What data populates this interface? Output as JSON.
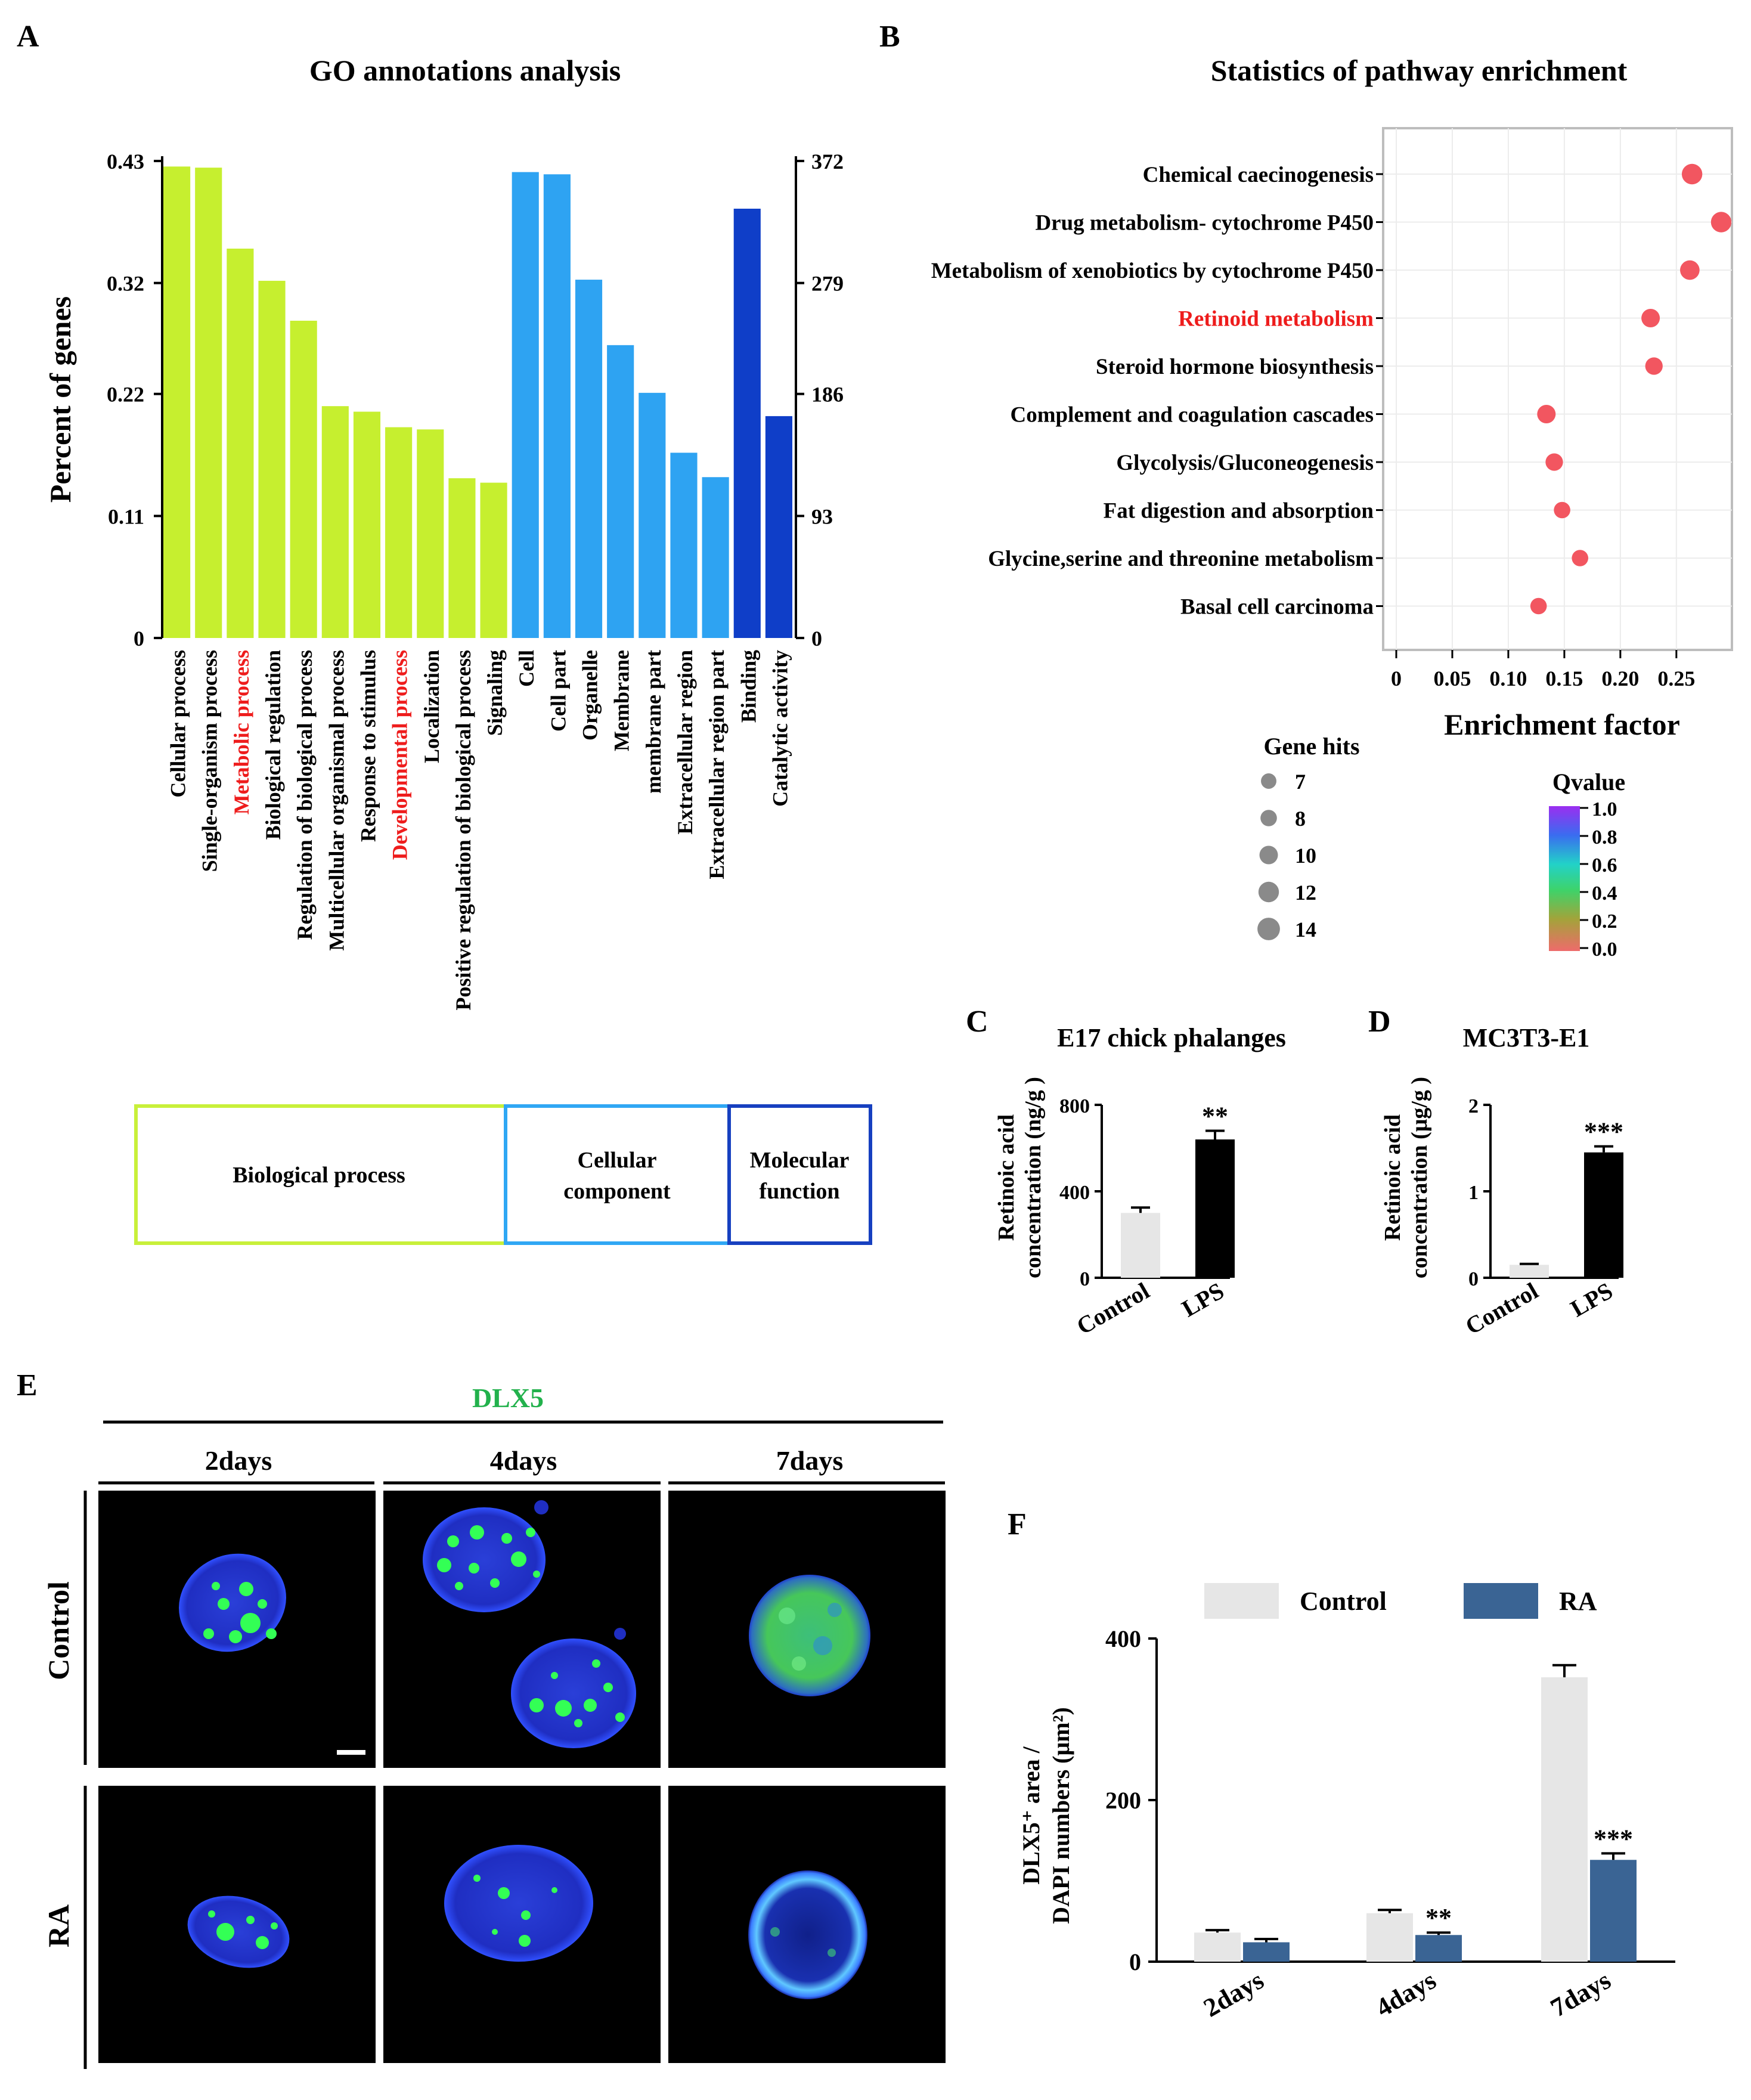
{
  "panels": {
    "a": {
      "letter": "A"
    },
    "b": {
      "letter": "B"
    },
    "c": {
      "letter": "C"
    },
    "d": {
      "letter": "D"
    },
    "e": {
      "letter": "E"
    },
    "f": {
      "letter": "F"
    }
  },
  "colors": {
    "bio": "#c6ef2f",
    "bio_box": "#c8f03a",
    "cell_light": "#2ea3f2",
    "cell_box": "#2fa7f4",
    "mol": "#0f3ec8",
    "mol_box": "#1740c0",
    "red": "#ee1c1c",
    "dot": "#f25660",
    "control_bar": "#e6e6e6",
    "lps_bar": "#000000",
    "ra_bar": "#3a6494",
    "green_title": "#22b14c"
  },
  "chart_data": [
    {
      "id": "go",
      "type": "bar",
      "title": "GO annotations analysis",
      "ylabel": "Percent of genes",
      "ylim": [
        0,
        0.43
      ],
      "yticks": [
        "0",
        "0.11",
        "0.22",
        "0.32",
        "0.43"
      ],
      "y2ticks": [
        "0",
        "93",
        "186",
        "279",
        "372"
      ],
      "categories": [
        {
          "label": "Cellular process",
          "value": 0.425,
          "group": "bio",
          "highlight": false
        },
        {
          "label": "Single-organism process",
          "value": 0.424,
          "group": "bio",
          "highlight": false
        },
        {
          "label": "Metabolic process",
          "value": 0.351,
          "group": "bio",
          "highlight": true
        },
        {
          "label": "Biological regulation",
          "value": 0.322,
          "group": "bio",
          "highlight": false
        },
        {
          "label": "Regulation of biological process",
          "value": 0.286,
          "group": "bio",
          "highlight": false
        },
        {
          "label": "Multicellular organismal process",
          "value": 0.209,
          "group": "bio",
          "highlight": false
        },
        {
          "label": "Response to stimulus",
          "value": 0.204,
          "group": "bio",
          "highlight": false
        },
        {
          "label": "Developmental process",
          "value": 0.19,
          "group": "bio",
          "highlight": true
        },
        {
          "label": "Localization",
          "value": 0.188,
          "group": "bio",
          "highlight": false
        },
        {
          "label": "Positive regulation of biological process",
          "value": 0.144,
          "group": "bio",
          "highlight": false
        },
        {
          "label": "Signaling",
          "value": 0.14,
          "group": "bio",
          "highlight": false
        },
        {
          "label": "Cell",
          "value": 0.42,
          "group": "cell",
          "highlight": false
        },
        {
          "label": "Cell part",
          "value": 0.418,
          "group": "cell",
          "highlight": false
        },
        {
          "label": "Organelle",
          "value": 0.323,
          "group": "cell",
          "highlight": false
        },
        {
          "label": "Membrane",
          "value": 0.264,
          "group": "cell",
          "highlight": false
        },
        {
          "label": "membrane part",
          "value": 0.221,
          "group": "cell",
          "highlight": false
        },
        {
          "label": "Extracellular region",
          "value": 0.167,
          "group": "cell",
          "highlight": false
        },
        {
          "label": "Extracellular region part",
          "value": 0.145,
          "group": "cell",
          "highlight": false
        },
        {
          "label": "Binding",
          "value": 0.387,
          "group": "mol",
          "highlight": false
        },
        {
          "label": "Catalytic activity",
          "value": 0.2,
          "group": "mol",
          "highlight": false
        }
      ],
      "groups": [
        {
          "key": "bio",
          "label": "Biological process"
        },
        {
          "key": "cell",
          "label": "Cellular component"
        },
        {
          "key": "mol",
          "label": "Molecular function"
        }
      ]
    },
    {
      "id": "kegg",
      "type": "scatter",
      "title": "Statistics of pathway enrichment",
      "xlabel": "Enrichment factor",
      "xlim": [
        0,
        0.29
      ],
      "xticks": [
        "0",
        "0.05",
        "0.10",
        "0.15",
        "0.20",
        "0.25"
      ],
      "points": [
        {
          "label": "Chemical caecinogenesis",
          "x": 0.264,
          "hits": 12,
          "highlight": false
        },
        {
          "label": "Drug metabolism- cytochrome P450",
          "x": 0.29,
          "hits": 12,
          "highlight": false
        },
        {
          "label": "Metabolism of xenobiotics by cytochrome P450",
          "x": 0.262,
          "hits": 11,
          "highlight": false
        },
        {
          "label": "Retinoid metabolism",
          "x": 0.227,
          "hits": 10,
          "highlight": true
        },
        {
          "label": "Steroid hormone biosynthesis",
          "x": 0.23,
          "hits": 9,
          "highlight": false
        },
        {
          "label": "Complement and coagulation cascades",
          "x": 0.134,
          "hits": 10,
          "highlight": false
        },
        {
          "label": "Glycolysis/Gluconeogenesis",
          "x": 0.141,
          "hits": 9,
          "highlight": false
        },
        {
          "label": "Fat digestion and absorption",
          "x": 0.148,
          "hits": 8,
          "highlight": false
        },
        {
          "label": "Glycine,serine and threonine metabolism",
          "x": 0.164,
          "hits": 8,
          "highlight": false
        },
        {
          "label": "Basal cell carcinoma",
          "x": 0.127,
          "hits": 8,
          "highlight": false
        }
      ],
      "size_legend": {
        "title": "Gene hits",
        "values": [
          "7",
          "8",
          "10",
          "12",
          "14"
        ]
      },
      "color_legend": {
        "title": "Qvalue",
        "ticks": [
          "1.0",
          "0.8",
          "0.6",
          "0.4",
          "0.2",
          "0.0"
        ]
      }
    },
    {
      "id": "c",
      "type": "bar",
      "title": "E17 chick phalanges",
      "ylabel_line1": "Retinoic acid",
      "ylabel_line2": "concentration (ng/g )",
      "ylim": [
        0,
        800
      ],
      "yticks": [
        "0",
        "400",
        "800"
      ],
      "categories": [
        "Control",
        "LPS"
      ],
      "values": [
        300,
        640
      ],
      "errors": [
        25,
        40
      ],
      "significance": [
        "",
        "**"
      ]
    },
    {
      "id": "d",
      "type": "bar",
      "title": "MC3T3-E1",
      "ylabel_line1": "Retinoic acid",
      "ylabel_line2": "concentration (μg/g )",
      "ylim": [
        0,
        2
      ],
      "yticks": [
        "0",
        "1",
        "2"
      ],
      "categories": [
        "Control",
        "LPS"
      ],
      "values": [
        0.15,
        1.45
      ],
      "errors": [
        0.01,
        0.07
      ],
      "significance": [
        "",
        "***"
      ]
    },
    {
      "id": "f",
      "type": "bar",
      "ylabel_line1": "DLX5⁺ area /",
      "ylabel_line2": "DAPI numbers (μm²)",
      "ylim": [
        0,
        400
      ],
      "yticks": [
        "0",
        "200",
        "400"
      ],
      "categories": [
        "2days",
        "4days",
        "7days"
      ],
      "series": [
        {
          "name": "Control",
          "values": [
            36,
            60,
            352
          ],
          "errors": [
            3,
            4,
            15
          ]
        },
        {
          "name": "RA",
          "values": [
            24,
            33,
            126
          ],
          "errors": [
            4,
            3,
            8
          ]
        }
      ],
      "significance": [
        "",
        "**",
        "***"
      ]
    }
  ],
  "microscopy": {
    "title": "DLX5",
    "columns": [
      "2days",
      "4days",
      "7days"
    ],
    "rows": [
      "Control",
      "RA"
    ]
  }
}
